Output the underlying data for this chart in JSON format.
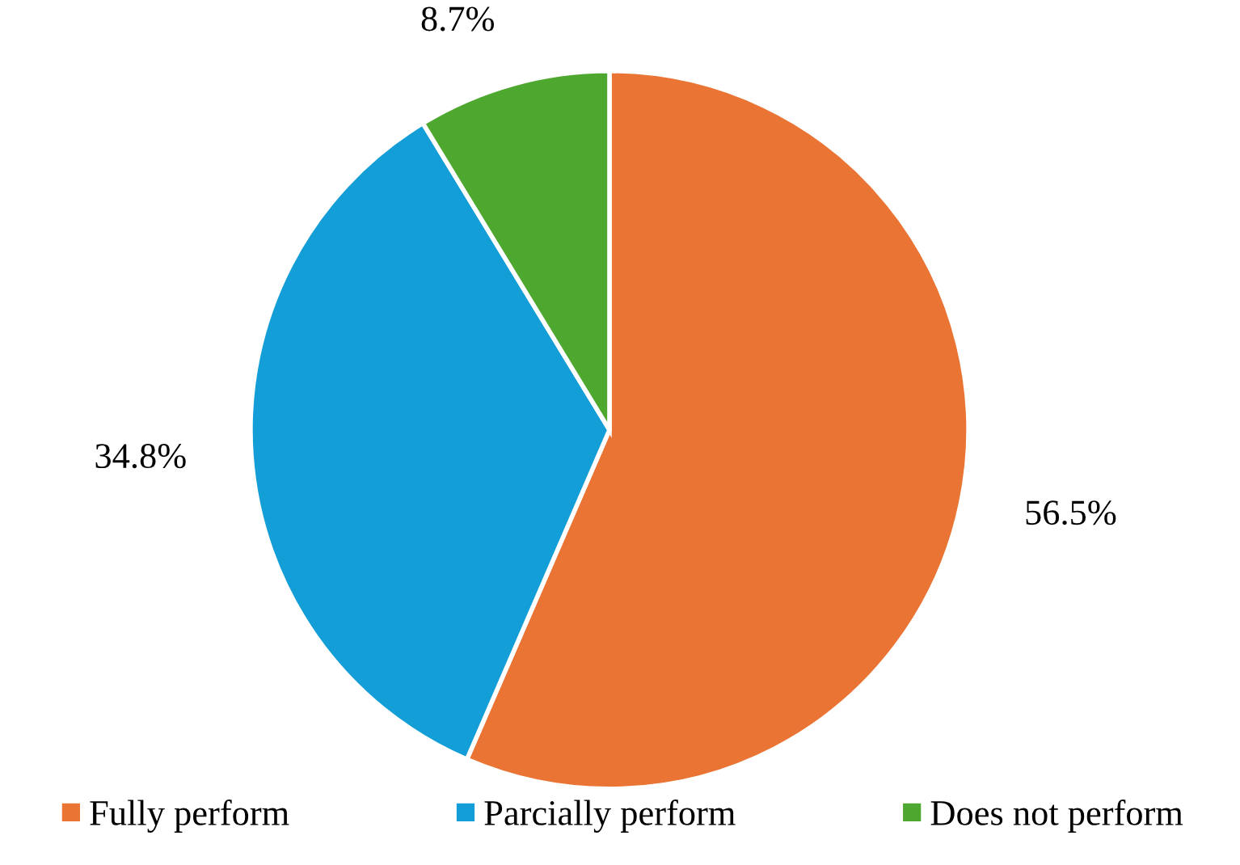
{
  "chart_data": {
    "type": "pie",
    "categories": [
      "Fully perform",
      "Parcially perform",
      "Does not perform"
    ],
    "values": [
      56.5,
      34.8,
      8.7
    ],
    "colors": [
      "#ea7433",
      "#139ed8",
      "#4ea72e"
    ],
    "value_labels": [
      "56.5%",
      "34.8%",
      "8.7%"
    ],
    "legend": "bottom"
  }
}
